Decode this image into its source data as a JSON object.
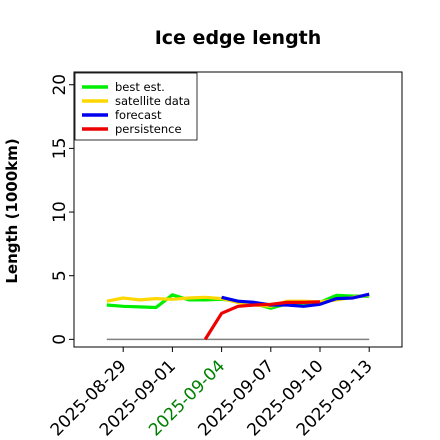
{
  "chart_data": {
    "type": "line",
    "title": "Ice edge length",
    "xlabel": "",
    "ylabel": "Length (1000km)",
    "ylim": [
      -0.6,
      21
    ],
    "xlim": [
      "2025-08-26",
      "2025-09-15"
    ],
    "y_ticks": [
      "0",
      "5",
      "10",
      "15",
      "20"
    ],
    "x_ticks": [
      "2025-08-29",
      "2025-09-01",
      "2025-09-04",
      "2025-09-07",
      "2025-09-10",
      "2025-09-13"
    ],
    "highlighted_x_tick": "2025-09-04",
    "highlight_color": "#008000",
    "legend_position": "upper-left",
    "grid": false,
    "baseline": {
      "y": 0,
      "x_start": "2025-08-28",
      "x_end": "2025-09-13",
      "color": "#808080"
    },
    "series": [
      {
        "name": "best est.",
        "color": "#00ee00",
        "points": [
          [
            "2025-08-28",
            2.7
          ],
          [
            "2025-08-29",
            2.6
          ],
          [
            "2025-08-30",
            2.55
          ],
          [
            "2025-08-31",
            2.5
          ],
          [
            "2025-09-01",
            3.5
          ],
          [
            "2025-09-02",
            3.1
          ],
          [
            "2025-09-03",
            3.1
          ],
          [
            "2025-09-04",
            3.15
          ],
          [
            "2025-09-05",
            3.0
          ],
          [
            "2025-09-06",
            2.8
          ],
          [
            "2025-09-07",
            2.45
          ],
          [
            "2025-09-08",
            2.8
          ],
          [
            "2025-09-09",
            2.85
          ],
          [
            "2025-09-10",
            2.9
          ],
          [
            "2025-09-11",
            3.45
          ],
          [
            "2025-09-12",
            3.4
          ],
          [
            "2025-09-13",
            3.4
          ]
        ]
      },
      {
        "name": "satellite data",
        "color": "#ffd700",
        "points": [
          [
            "2025-08-28",
            3.0
          ],
          [
            "2025-08-29",
            3.25
          ],
          [
            "2025-08-30",
            3.1
          ],
          [
            "2025-08-31",
            3.2
          ],
          [
            "2025-09-01",
            3.15
          ],
          [
            "2025-09-02",
            3.25
          ],
          [
            "2025-09-03",
            3.3
          ],
          [
            "2025-09-04",
            3.2
          ],
          [
            "2025-09-05",
            2.9
          ],
          [
            "2025-09-06",
            2.7
          ],
          [
            "2025-09-07",
            2.6
          ],
          [
            "2025-09-08",
            3.0
          ],
          [
            "2025-09-09",
            3.0
          ],
          [
            "2025-09-10",
            2.95
          ],
          [
            "2025-09-11",
            3.1
          ],
          [
            "2025-09-12",
            3.3
          ],
          [
            "2025-09-13",
            3.5
          ]
        ]
      },
      {
        "name": "forecast",
        "color": "#0000ee",
        "points": [
          [
            "2025-09-04",
            3.3
          ],
          [
            "2025-09-05",
            3.0
          ],
          [
            "2025-09-06",
            2.9
          ],
          [
            "2025-09-07",
            2.7
          ],
          [
            "2025-09-08",
            2.7
          ],
          [
            "2025-09-09",
            2.6
          ],
          [
            "2025-09-10",
            2.75
          ],
          [
            "2025-09-11",
            3.2
          ],
          [
            "2025-09-12",
            3.25
          ],
          [
            "2025-09-13",
            3.55
          ]
        ]
      },
      {
        "name": "persistence",
        "color": "#ee0000",
        "points": [
          [
            "2025-09-03",
            0.0
          ],
          [
            "2025-09-04",
            2.05
          ],
          [
            "2025-09-05",
            2.6
          ],
          [
            "2025-09-06",
            2.7
          ],
          [
            "2025-09-07",
            2.75
          ],
          [
            "2025-09-08",
            2.9
          ],
          [
            "2025-09-09",
            2.9
          ],
          [
            "2025-09-10",
            2.95
          ]
        ]
      }
    ]
  }
}
